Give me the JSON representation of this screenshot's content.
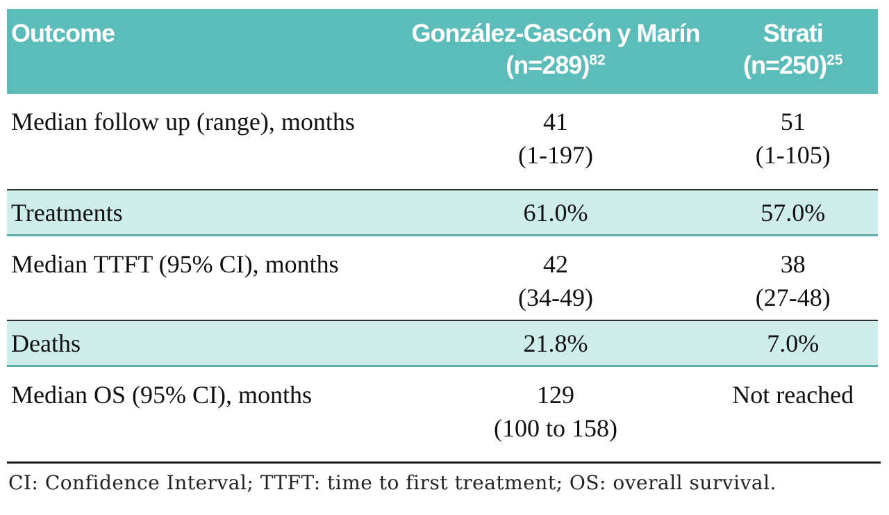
{
  "colors": {
    "header_bg": "#5bbcba",
    "header_text": "#ffffff",
    "shaded_row_bg": "#cdecea",
    "shaded_row_border": "#5bafac",
    "dark_rule": "#1a1a1a",
    "body_text": "#111111"
  },
  "table": {
    "header": {
      "outcome_label": "Outcome",
      "col2_name": "González-Gascón y Marín",
      "col2_n": "(n=289)",
      "col2_ref": "82",
      "col3_name": "Strati",
      "col3_n": "(n=250)",
      "col3_ref": "25"
    },
    "rows": [
      {
        "label": "Median follow up (range), months",
        "v1": "41",
        "v1b": "(1-197)",
        "v2": "51",
        "v2b": "(1-105)"
      },
      {
        "label": "Treatments",
        "v1": "61.0%",
        "v2": "57.0%"
      },
      {
        "label": "Median TTFT (95% CI), months",
        "v1": "42",
        "v1b": "(34-49)",
        "v2": "38",
        "v2b": "(27-48)"
      },
      {
        "label": "Deaths",
        "v1": "21.8%",
        "v2": "7.0%"
      },
      {
        "label": "Median OS (95% CI), months",
        "v1": "129",
        "v1b": "(100 to 158)",
        "v2": "Not reached"
      }
    ],
    "footnote": "CI: Confidence Interval; TTFT: time to first treatment; OS: overall survival."
  }
}
